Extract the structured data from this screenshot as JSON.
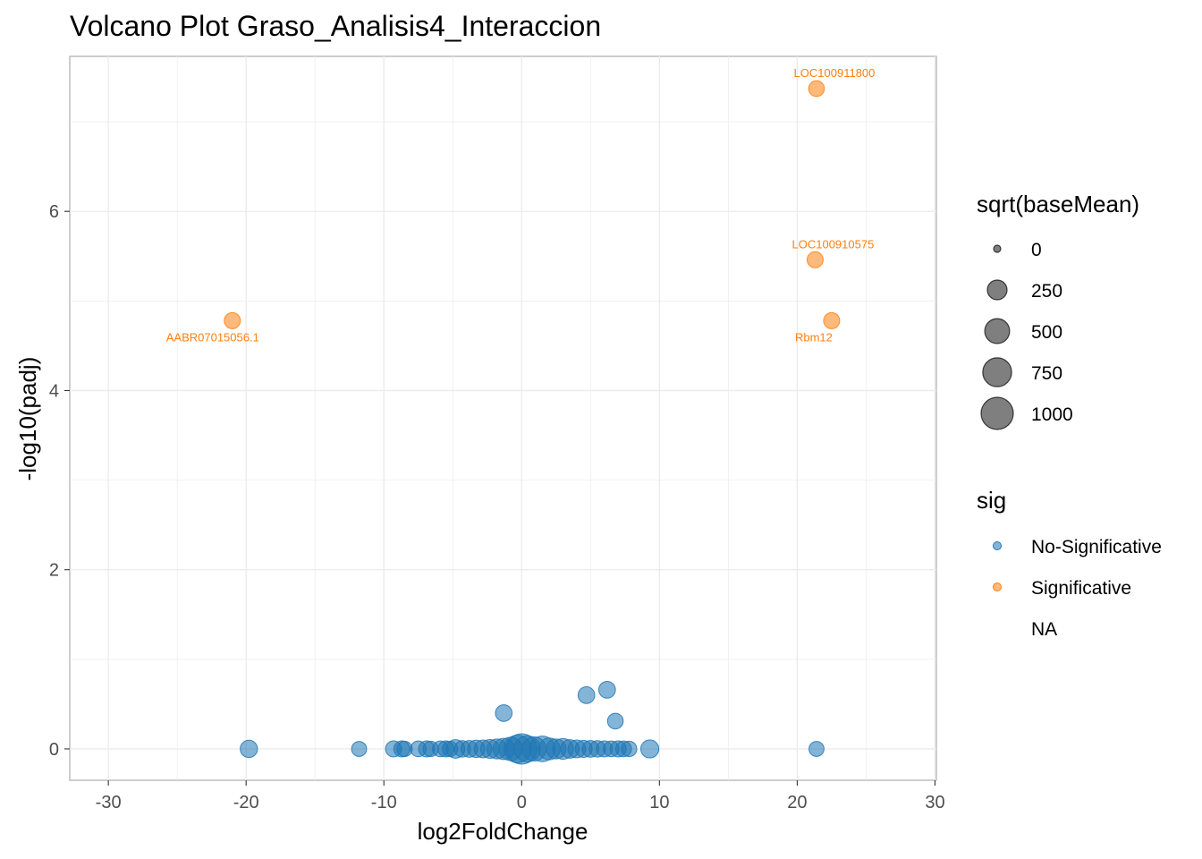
{
  "chart_data": {
    "type": "scatter",
    "title": "Volcano Plot Graso_Analisis4_Interaccion",
    "xlabel": "log2FoldChange",
    "ylabel": "-log10(padj)",
    "xlim": [
      -32.8,
      30.1
    ],
    "ylim": [
      -0.35,
      7.73
    ],
    "x_ticks": [
      "-30",
      "-20",
      "-10",
      "0",
      "10",
      "20",
      "30"
    ],
    "y_ticks": [
      "0",
      "2",
      "4",
      "6"
    ],
    "grid": true,
    "colors": {
      "No-Significative": "#1f77b4",
      "Significative": "#ff7f0e"
    },
    "points": [
      {
        "x": 21.4,
        "y": 7.37,
        "size": 100,
        "sig": "Significative",
        "label": "LOC100911800"
      },
      {
        "x": 21.3,
        "y": 5.46,
        "size": 110,
        "sig": "Significative",
        "label": "LOC100910575"
      },
      {
        "x": -21.0,
        "y": 4.78,
        "size": 110,
        "sig": "Significative",
        "label": "AABR07015056.1"
      },
      {
        "x": 22.5,
        "y": 4.78,
        "size": 110,
        "sig": "Significative",
        "label": "Rbm12"
      },
      {
        "x": 6.2,
        "y": 0.66,
        "size": 130,
        "sig": "No-Significative"
      },
      {
        "x": 4.7,
        "y": 0.6,
        "size": 130,
        "sig": "No-Significative"
      },
      {
        "x": -1.3,
        "y": 0.4,
        "size": 130,
        "sig": "No-Significative"
      },
      {
        "x": 6.8,
        "y": 0.31,
        "size": 100,
        "sig": "No-Significative"
      },
      {
        "x": -19.8,
        "y": 0.0,
        "size": 150,
        "sig": "No-Significative"
      },
      {
        "x": -11.8,
        "y": 0.0,
        "size": 80,
        "sig": "No-Significative"
      },
      {
        "x": -9.3,
        "y": 0.0,
        "size": 110,
        "sig": "No-Significative"
      },
      {
        "x": -8.7,
        "y": 0.0,
        "size": 110,
        "sig": "No-Significative"
      },
      {
        "x": -8.5,
        "y": 0.0,
        "size": 90,
        "sig": "No-Significative"
      },
      {
        "x": -7.5,
        "y": 0.0,
        "size": 100,
        "sig": "No-Significative"
      },
      {
        "x": -6.9,
        "y": 0.0,
        "size": 110,
        "sig": "No-Significative"
      },
      {
        "x": -6.6,
        "y": 0.0,
        "size": 90,
        "sig": "No-Significative"
      },
      {
        "x": -5.9,
        "y": 0.0,
        "size": 100,
        "sig": "No-Significative"
      },
      {
        "x": -5.5,
        "y": 0.0,
        "size": 110,
        "sig": "No-Significative"
      },
      {
        "x": -5.2,
        "y": 0.0,
        "size": 90,
        "sig": "No-Significative"
      },
      {
        "x": -4.8,
        "y": 0.0,
        "size": 200,
        "sig": "No-Significative"
      },
      {
        "x": -4.3,
        "y": 0.0,
        "size": 120,
        "sig": "No-Significative"
      },
      {
        "x": -3.8,
        "y": 0.0,
        "size": 130,
        "sig": "No-Significative"
      },
      {
        "x": -3.3,
        "y": 0.0,
        "size": 150,
        "sig": "No-Significative"
      },
      {
        "x": -2.8,
        "y": 0.0,
        "size": 170,
        "sig": "No-Significative"
      },
      {
        "x": -2.3,
        "y": 0.0,
        "size": 210,
        "sig": "No-Significative"
      },
      {
        "x": -1.8,
        "y": 0.0,
        "size": 260,
        "sig": "No-Significative"
      },
      {
        "x": -1.3,
        "y": 0.0,
        "size": 330,
        "sig": "No-Significative"
      },
      {
        "x": -0.8,
        "y": 0.0,
        "size": 450,
        "sig": "No-Significative"
      },
      {
        "x": -0.3,
        "y": 0.0,
        "size": 750,
        "sig": "No-Significative"
      },
      {
        "x": 0.0,
        "y": 0.0,
        "size": 1000,
        "sig": "No-Significative"
      },
      {
        "x": 0.4,
        "y": 0.0,
        "size": 650,
        "sig": "No-Significative"
      },
      {
        "x": 0.9,
        "y": 0.0,
        "size": 500,
        "sig": "No-Significative"
      },
      {
        "x": 1.5,
        "y": 0.0,
        "size": 600,
        "sig": "No-Significative"
      },
      {
        "x": 2.0,
        "y": 0.0,
        "size": 360,
        "sig": "No-Significative"
      },
      {
        "x": 2.5,
        "y": 0.0,
        "size": 260,
        "sig": "No-Significative"
      },
      {
        "x": 3.0,
        "y": 0.0,
        "size": 300,
        "sig": "No-Significative"
      },
      {
        "x": 3.5,
        "y": 0.0,
        "size": 200,
        "sig": "No-Significative"
      },
      {
        "x": 4.0,
        "y": 0.0,
        "size": 170,
        "sig": "No-Significative"
      },
      {
        "x": 4.5,
        "y": 0.0,
        "size": 140,
        "sig": "No-Significative"
      },
      {
        "x": 5.0,
        "y": 0.0,
        "size": 130,
        "sig": "No-Significative"
      },
      {
        "x": 5.5,
        "y": 0.0,
        "size": 120,
        "sig": "No-Significative"
      },
      {
        "x": 6.0,
        "y": 0.0,
        "size": 110,
        "sig": "No-Significative"
      },
      {
        "x": 6.5,
        "y": 0.0,
        "size": 100,
        "sig": "No-Significative"
      },
      {
        "x": 7.0,
        "y": 0.0,
        "size": 110,
        "sig": "No-Significative"
      },
      {
        "x": 7.4,
        "y": 0.0,
        "size": 100,
        "sig": "No-Significative"
      },
      {
        "x": 7.8,
        "y": 0.0,
        "size": 90,
        "sig": "No-Significative"
      },
      {
        "x": 9.3,
        "y": 0.0,
        "size": 180,
        "sig": "No-Significative"
      },
      {
        "x": 21.4,
        "y": 0.0,
        "size": 80,
        "sig": "No-Significative"
      }
    ]
  },
  "legend": {
    "size_title": "sqrt(baseMean)",
    "size_entries": [
      {
        "label": "0",
        "value": 0
      },
      {
        "label": "250",
        "value": 250
      },
      {
        "label": "500",
        "value": 500
      },
      {
        "label": "750",
        "value": 750
      },
      {
        "label": "1000",
        "value": 1000
      }
    ],
    "sig_title": "sig",
    "sig_entries": [
      {
        "label": "No-Significative",
        "key": "No-Significative"
      },
      {
        "label": "Significative",
        "key": "Significative"
      },
      {
        "label": "NA",
        "key": "NA"
      }
    ]
  }
}
